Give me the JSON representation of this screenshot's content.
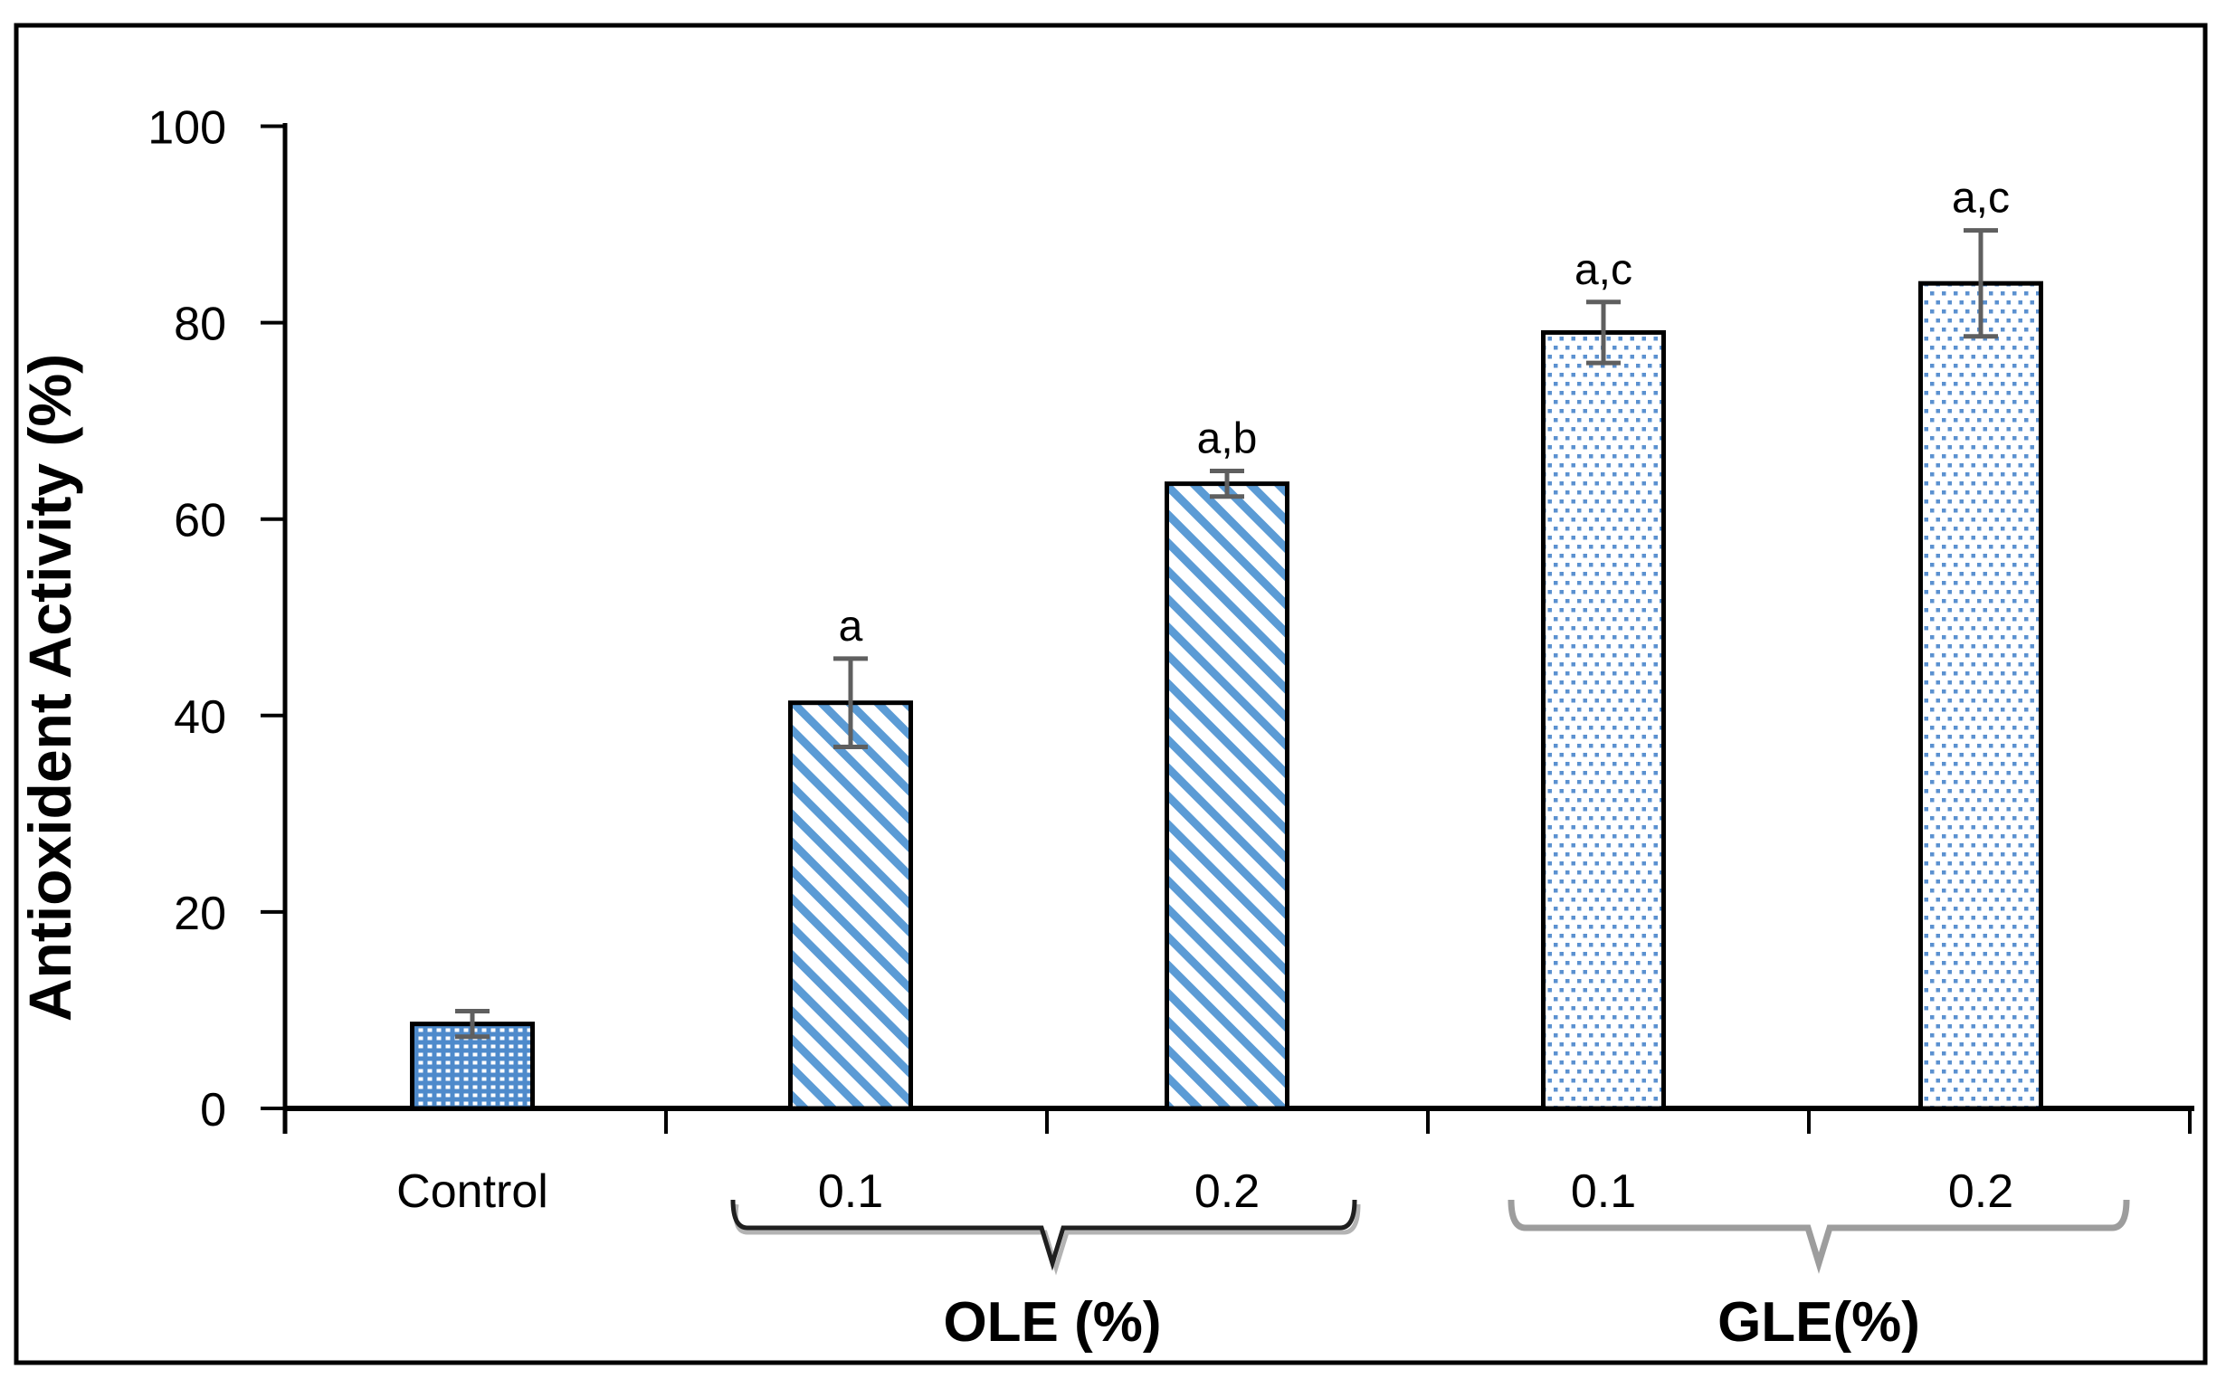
{
  "chart_data": {
    "type": "bar",
    "title": "",
    "ylabel": "Antioxident Activity (%)",
    "xlabel": "",
    "ylim": [
      0,
      100
    ],
    "yticks": [
      0,
      20,
      40,
      60,
      80,
      100
    ],
    "grid": "off",
    "legend": "none",
    "categories": [
      "Control",
      "0.1",
      "0.2",
      "0.1",
      "0.2"
    ],
    "series": [
      {
        "name": "Antioxident Activity (%)",
        "values": [
          8.6,
          41.3,
          63.6,
          79.0,
          84.0
        ],
        "errors": [
          1.3,
          4.5,
          1.3,
          3.1,
          5.4
        ],
        "sig_labels": [
          "",
          "a",
          "a,b",
          "a,c",
          "a,c"
        ],
        "patterns": [
          "blue-grid-dots",
          "diagonal-stripes",
          "diagonal-stripes",
          "sparse-dots",
          "sparse-dots"
        ]
      }
    ],
    "groups": [
      {
        "label": "OLE (%)",
        "categories": [
          "0.1",
          "0.2"
        ],
        "bracket_color": "#1f1f1f"
      },
      {
        "label": "GLE(%)",
        "categories": [
          "0.1",
          "0.2"
        ],
        "bracket_color": "#9d9d9d"
      }
    ],
    "colors": {
      "bar_blue": "#5B9BD5",
      "control_fill": "#4E8ACB",
      "dot_blue": "#5B91D0",
      "error_bar": "#5f5f5f",
      "axis": "#000000",
      "text": "#000000",
      "background": "#ffffff"
    }
  }
}
